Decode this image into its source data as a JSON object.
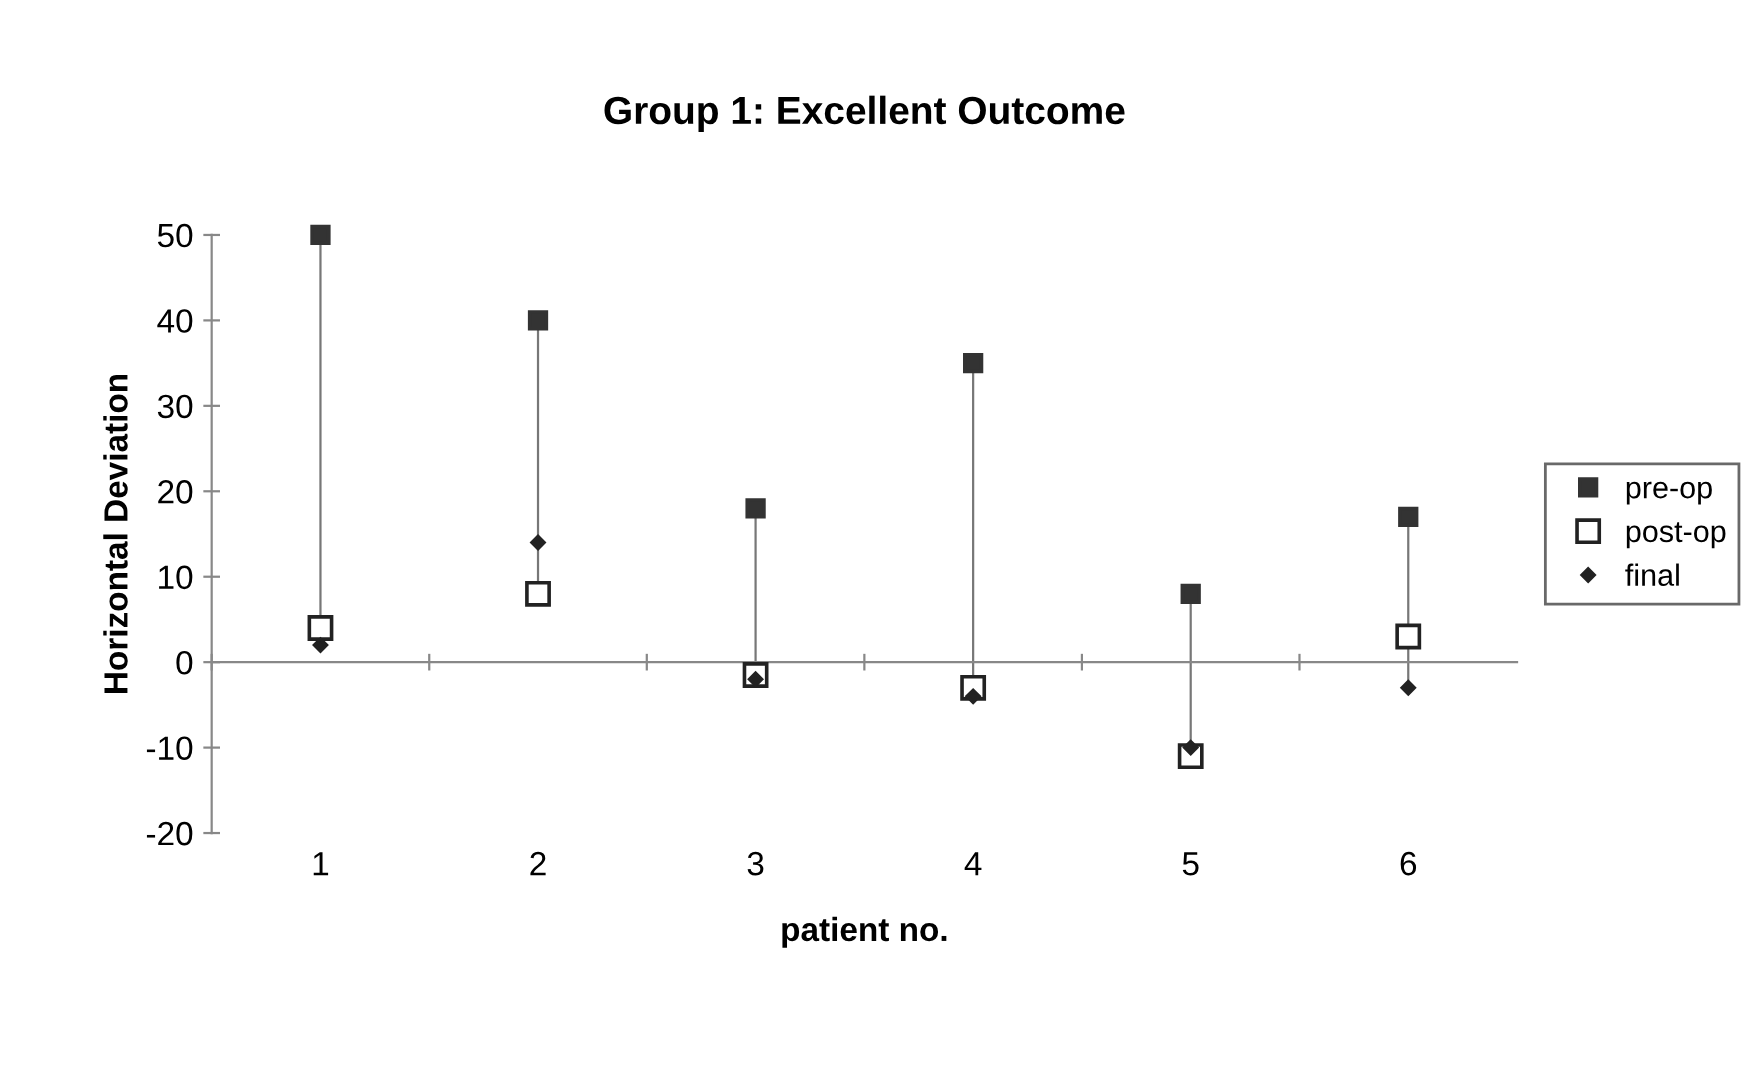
{
  "chart_data": {
    "type": "scatter",
    "title": "Group 1: Excellent Outcome",
    "xlabel": "patient no.",
    "ylabel": "Horizontal Deviation",
    "categories": [
      "1",
      "2",
      "3",
      "4",
      "5",
      "6"
    ],
    "series": [
      {
        "name": "pre-op",
        "color": "#333333",
        "marker": "square",
        "values": [
          50,
          40,
          18,
          35,
          8,
          17
        ]
      },
      {
        "name": "post-op",
        "color": "#222222",
        "marker": "square_open",
        "values": [
          4,
          8,
          -1.5,
          -3,
          -11,
          3
        ]
      },
      {
        "name": "final",
        "color": "#222222",
        "marker": "diamond",
        "values": [
          2,
          14,
          -2,
          -4,
          -10,
          -3
        ]
      }
    ],
    "ylim": [
      -20,
      50
    ],
    "yticks": [
      -20,
      -10,
      0,
      10,
      20,
      30,
      40,
      50
    ],
    "legend": "right"
  }
}
